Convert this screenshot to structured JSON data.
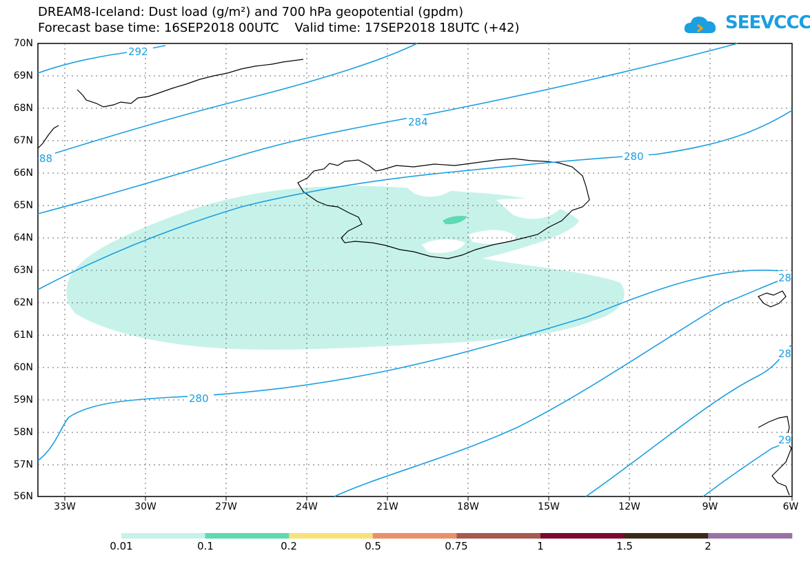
{
  "title": {
    "line1": "DREAM8-Iceland: Dust load (g/m²) and 700 hPa geopotential (gpdm)",
    "line2": "Forecast base time: 16SEP2018 00UTC    Valid time: 17SEP2018 18UTC (+42)"
  },
  "logo": {
    "text": "SEEVCCC"
  },
  "axes": {
    "lat_labels": [
      "70N",
      "69N",
      "68N",
      "67N",
      "66N",
      "65N",
      "64N",
      "63N",
      "62N",
      "61N",
      "60N",
      "59N",
      "58N",
      "57N",
      "56N"
    ],
    "lon_labels": [
      "33W",
      "30W",
      "27W",
      "24W",
      "21W",
      "18W",
      "15W",
      "12W",
      "9W",
      "6W"
    ]
  },
  "contour_labels": [
    "292",
    "284",
    "280",
    "280",
    "88",
    "28",
    "28",
    "29"
  ],
  "colorbar": {
    "labels": [
      "0.01",
      "0.1",
      "0.2",
      "0.5",
      "0.75",
      "1",
      "1.5",
      "2"
    ],
    "colors": [
      "#c7f2ea",
      "#5fd9b3",
      "#f6e27a",
      "#e8906a",
      "#a85a4e",
      "#7d0a2e",
      "#3a2a1a",
      "#9a73a6"
    ]
  },
  "colors": {
    "contour": "#1a9fe0",
    "dust_low": "#c7f2ea",
    "dust_mid": "#5fd9b3",
    "coast": "#000000"
  }
}
